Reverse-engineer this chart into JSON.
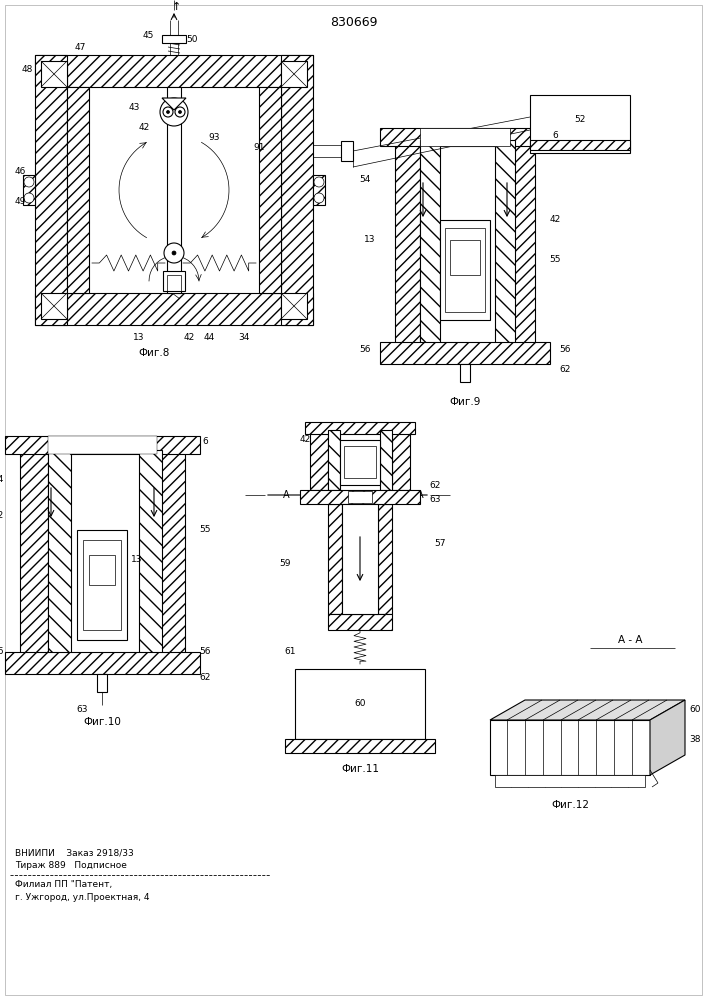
{
  "title": "830669",
  "background_color": "#ffffff",
  "line_color": "#000000",
  "fig_width": 7.07,
  "fig_height": 10.0,
  "footer_line1": "ВНИИПИ    Заказ 2918/33",
  "footer_line2": "Тираж 889   Подписное",
  "footer_line3": "Филиал ПП \"Патент,",
  "footer_line4": "г. Ужгород, ул.Проектная, 4",
  "fig8_label": "Фиг.8",
  "fig9_label": "Фиг.9",
  "fig10_label": "Фиг.10",
  "fig11_label": "Фиг.11",
  "fig12_label": "Фиг.12",
  "aa_label": "А - А"
}
